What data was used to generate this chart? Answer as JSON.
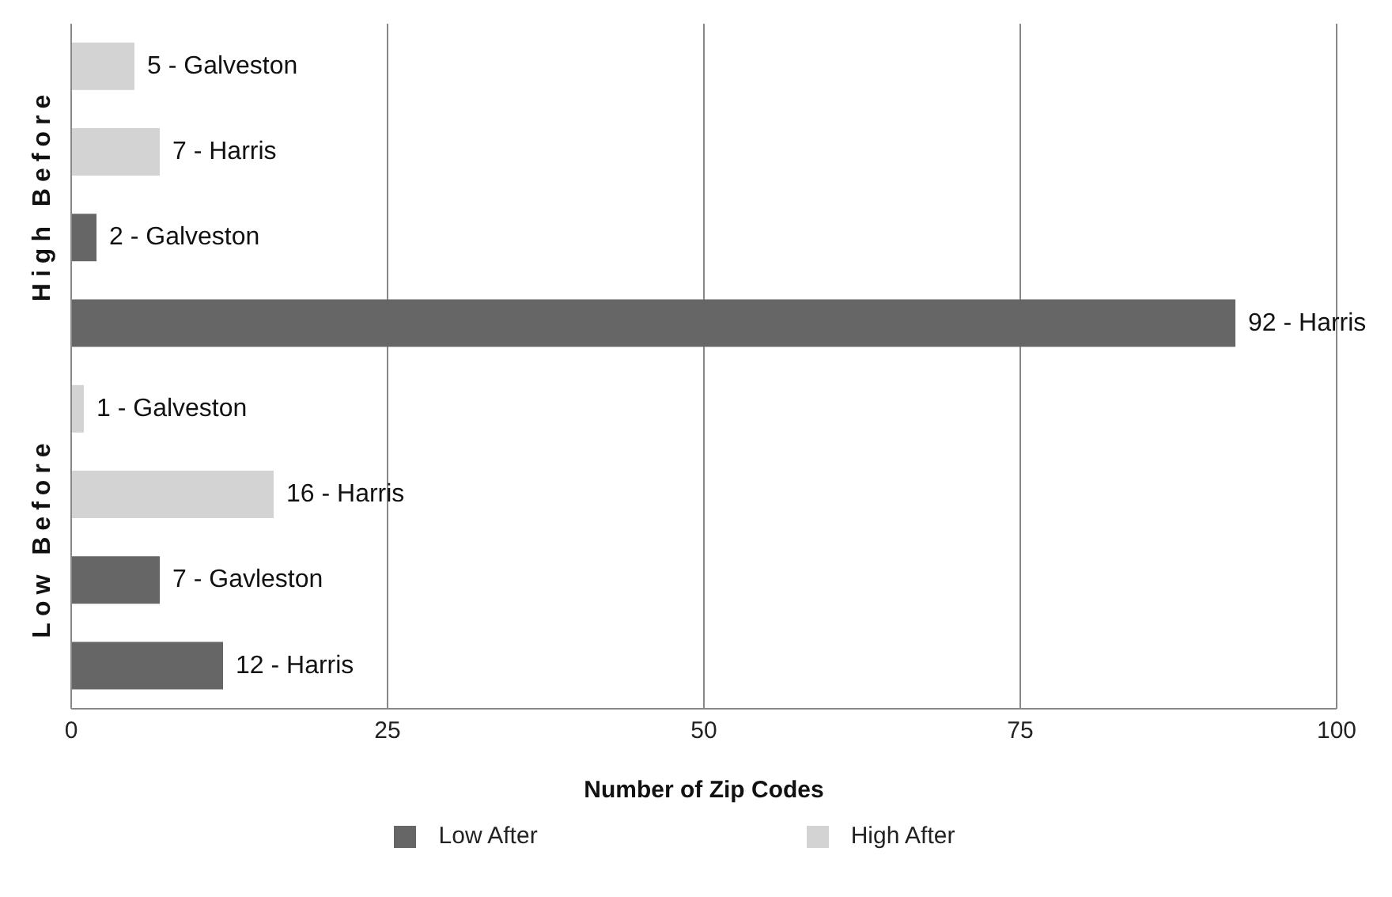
{
  "chart_data": {
    "type": "bar",
    "orientation": "horizontal",
    "xlabel": "Number of Zip Codes",
    "categories": [
      null,
      null,
      null,
      null,
      null,
      null,
      null,
      null
    ],
    "series": [
      {
        "name": "Low After",
        "color": "#666666",
        "values": [
          null,
          null,
          2,
          92,
          null,
          null,
          7,
          12
        ],
        "value_labels": [
          null,
          null,
          "2 - Galveston",
          "92 - Harris",
          null,
          null,
          "7 - Gavleston",
          "12 - Harris"
        ]
      },
      {
        "name": "High After",
        "color": "#d3d3d3",
        "values": [
          5,
          7,
          null,
          null,
          1,
          16,
          null,
          null
        ],
        "value_labels": [
          "5 - Galveston",
          "7 - Harris",
          null,
          null,
          "1 - Galveston",
          "16 - Harris",
          null,
          null
        ]
      }
    ],
    "annotations": [
      "High Before",
      "Low Before"
    ],
    "xlim": [
      0,
      100
    ],
    "xticks": [
      0,
      25,
      50,
      75,
      100
    ],
    "grid": "x",
    "legend": "bottom"
  }
}
